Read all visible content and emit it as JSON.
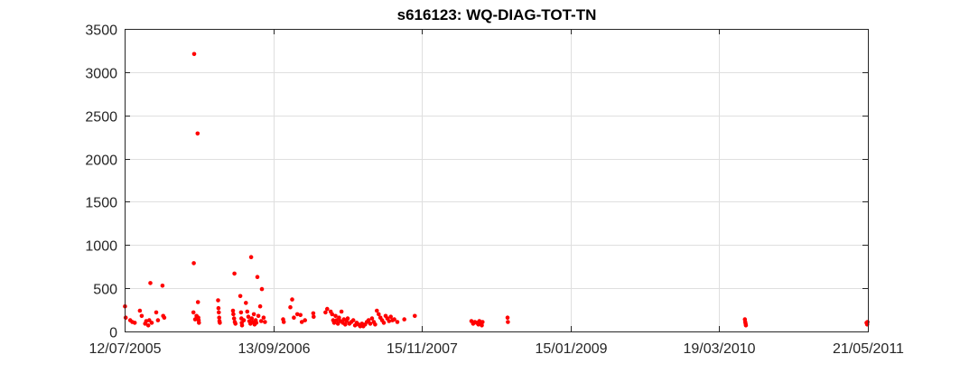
{
  "chart_data": {
    "type": "scatter",
    "title": "s616123: WQ-DIAG-TOT-TN",
    "xlabel": "",
    "ylabel": "",
    "x_axis_type": "date",
    "xlim": [
      "2005-07-12",
      "2011-05-21"
    ],
    "ylim": [
      0,
      3500
    ],
    "x_ticks": [
      "2005-07-12",
      "2006-09-13",
      "2007-11-15",
      "2009-01-15",
      "2010-03-19",
      "2011-05-21"
    ],
    "x_tick_labels": [
      "12/07/2005",
      "13/09/2006",
      "15/11/2007",
      "15/01/2009",
      "19/03/2010",
      "21/05/2011"
    ],
    "y_ticks": [
      0,
      500,
      1000,
      1500,
      2000,
      2500,
      3000,
      3500
    ],
    "y_tick_labels": [
      "0",
      "500",
      "1000",
      "1500",
      "2000",
      "2500",
      "3000",
      "3500"
    ],
    "grid": true,
    "marker_color": "#ff0000",
    "series": [
      {
        "points": [
          [
            "2005-07-13",
            290
          ],
          [
            "2005-07-15",
            160
          ],
          [
            "2005-07-28",
            130
          ],
          [
            "2005-08-03",
            110
          ],
          [
            "2005-08-10",
            100
          ],
          [
            "2005-08-25",
            240
          ],
          [
            "2005-08-30",
            180
          ],
          [
            "2005-09-09",
            90
          ],
          [
            "2005-09-12",
            120
          ],
          [
            "2005-09-18",
            70
          ],
          [
            "2005-09-21",
            130
          ],
          [
            "2005-09-24",
            560
          ],
          [
            "2005-09-28",
            100
          ],
          [
            "2005-10-11",
            220
          ],
          [
            "2005-10-16",
            130
          ],
          [
            "2005-10-29",
            530
          ],
          [
            "2005-10-31",
            180
          ],
          [
            "2005-11-03",
            160
          ],
          [
            "2006-01-28",
            3210
          ],
          [
            "2006-01-27",
            790
          ],
          [
            "2006-01-26",
            220
          ],
          [
            "2006-01-31",
            140
          ],
          [
            "2006-02-04",
            180
          ],
          [
            "2006-02-07",
            2290
          ],
          [
            "2006-02-08",
            340
          ],
          [
            "2006-02-10",
            130
          ],
          [
            "2006-02-11",
            100
          ],
          [
            "2006-02-09",
            160
          ],
          [
            "2006-04-07",
            360
          ],
          [
            "2006-04-08",
            270
          ],
          [
            "2006-04-09",
            220
          ],
          [
            "2006-04-10",
            160
          ],
          [
            "2006-04-11",
            120
          ],
          [
            "2006-04-12",
            100
          ],
          [
            "2006-05-24",
            670
          ],
          [
            "2006-05-20",
            240
          ],
          [
            "2006-05-21",
            200
          ],
          [
            "2006-05-23",
            150
          ],
          [
            "2006-05-25",
            110
          ],
          [
            "2006-05-27",
            90
          ],
          [
            "2006-06-10",
            410
          ],
          [
            "2006-06-12",
            220
          ],
          [
            "2006-06-13",
            150
          ],
          [
            "2006-06-14",
            100
          ],
          [
            "2006-06-15",
            70
          ],
          [
            "2006-06-20",
            130
          ],
          [
            "2006-06-26",
            330
          ],
          [
            "2006-06-30",
            230
          ],
          [
            "2006-07-03",
            170
          ],
          [
            "2006-07-06",
            120
          ],
          [
            "2006-07-09",
            90
          ],
          [
            "2006-07-11",
            860
          ],
          [
            "2006-07-13",
            150
          ],
          [
            "2006-07-16",
            110
          ],
          [
            "2006-07-19",
            200
          ],
          [
            "2006-07-21",
            80
          ],
          [
            "2006-07-24",
            130
          ],
          [
            "2006-07-26",
            100
          ],
          [
            "2006-07-29",
            630
          ],
          [
            "2006-08-01",
            180
          ],
          [
            "2006-08-06",
            290
          ],
          [
            "2006-08-09",
            120
          ],
          [
            "2006-08-11",
            490
          ],
          [
            "2006-08-16",
            160
          ],
          [
            "2006-08-20",
            110
          ],
          [
            "2006-10-11",
            140
          ],
          [
            "2006-10-13",
            110
          ],
          [
            "2006-11-01",
            280
          ],
          [
            "2006-11-06",
            370
          ],
          [
            "2006-11-11",
            160
          ],
          [
            "2006-11-21",
            200
          ],
          [
            "2006-11-30",
            190
          ],
          [
            "2006-12-04",
            110
          ],
          [
            "2006-12-13",
            130
          ],
          [
            "2007-01-06",
            210
          ],
          [
            "2007-01-07",
            170
          ],
          [
            "2007-02-10",
            220
          ],
          [
            "2007-02-15",
            260
          ],
          [
            "2007-02-25",
            230
          ],
          [
            "2007-03-01",
            200
          ],
          [
            "2007-03-04",
            130
          ],
          [
            "2007-03-07",
            100
          ],
          [
            "2007-03-11",
            180
          ],
          [
            "2007-03-14",
            130
          ],
          [
            "2007-03-18",
            90
          ],
          [
            "2007-03-21",
            160
          ],
          [
            "2007-03-25",
            120
          ],
          [
            "2007-03-28",
            230
          ],
          [
            "2007-04-01",
            100
          ],
          [
            "2007-04-04",
            140
          ],
          [
            "2007-04-08",
            80
          ],
          [
            "2007-04-12",
            120
          ],
          [
            "2007-04-15",
            150
          ],
          [
            "2007-04-20",
            90
          ],
          [
            "2007-04-25",
            110
          ],
          [
            "2007-05-01",
            130
          ],
          [
            "2007-05-06",
            70
          ],
          [
            "2007-05-11",
            100
          ],
          [
            "2007-05-16",
            80
          ],
          [
            "2007-05-21",
            60
          ],
          [
            "2007-05-26",
            90
          ],
          [
            "2007-05-30",
            60
          ],
          [
            "2007-06-04",
            80
          ],
          [
            "2007-06-09",
            110
          ],
          [
            "2007-06-14",
            130
          ],
          [
            "2007-06-19",
            90
          ],
          [
            "2007-06-24",
            150
          ],
          [
            "2007-06-29",
            110
          ],
          [
            "2007-07-03",
            80
          ],
          [
            "2007-07-08",
            240
          ],
          [
            "2007-07-13",
            200
          ],
          [
            "2007-07-18",
            160
          ],
          [
            "2007-07-23",
            130
          ],
          [
            "2007-07-28",
            100
          ],
          [
            "2007-08-02",
            180
          ],
          [
            "2007-08-07",
            150
          ],
          [
            "2007-08-12",
            120
          ],
          [
            "2007-08-17",
            170
          ],
          [
            "2007-08-22",
            130
          ],
          [
            "2007-08-27",
            140
          ],
          [
            "2007-09-05",
            110
          ],
          [
            "2007-09-25",
            140
          ],
          [
            "2007-10-25",
            180
          ],
          [
            "2008-04-05",
            120
          ],
          [
            "2008-04-10",
            90
          ],
          [
            "2008-04-15",
            110
          ],
          [
            "2008-04-20",
            100
          ],
          [
            "2008-04-25",
            80
          ],
          [
            "2008-04-28",
            120
          ],
          [
            "2008-05-01",
            100
          ],
          [
            "2008-05-03",
            90
          ],
          [
            "2008-05-05",
            70
          ],
          [
            "2008-05-07",
            110
          ],
          [
            "2008-07-18",
            160
          ],
          [
            "2008-07-19",
            110
          ],
          [
            "2010-06-01",
            140
          ],
          [
            "2010-06-02",
            110
          ],
          [
            "2010-06-03",
            90
          ],
          [
            "2010-06-04",
            70
          ],
          [
            "2011-05-17",
            100
          ],
          [
            "2011-05-19",
            80
          ],
          [
            "2011-05-20",
            110
          ]
        ]
      }
    ]
  }
}
